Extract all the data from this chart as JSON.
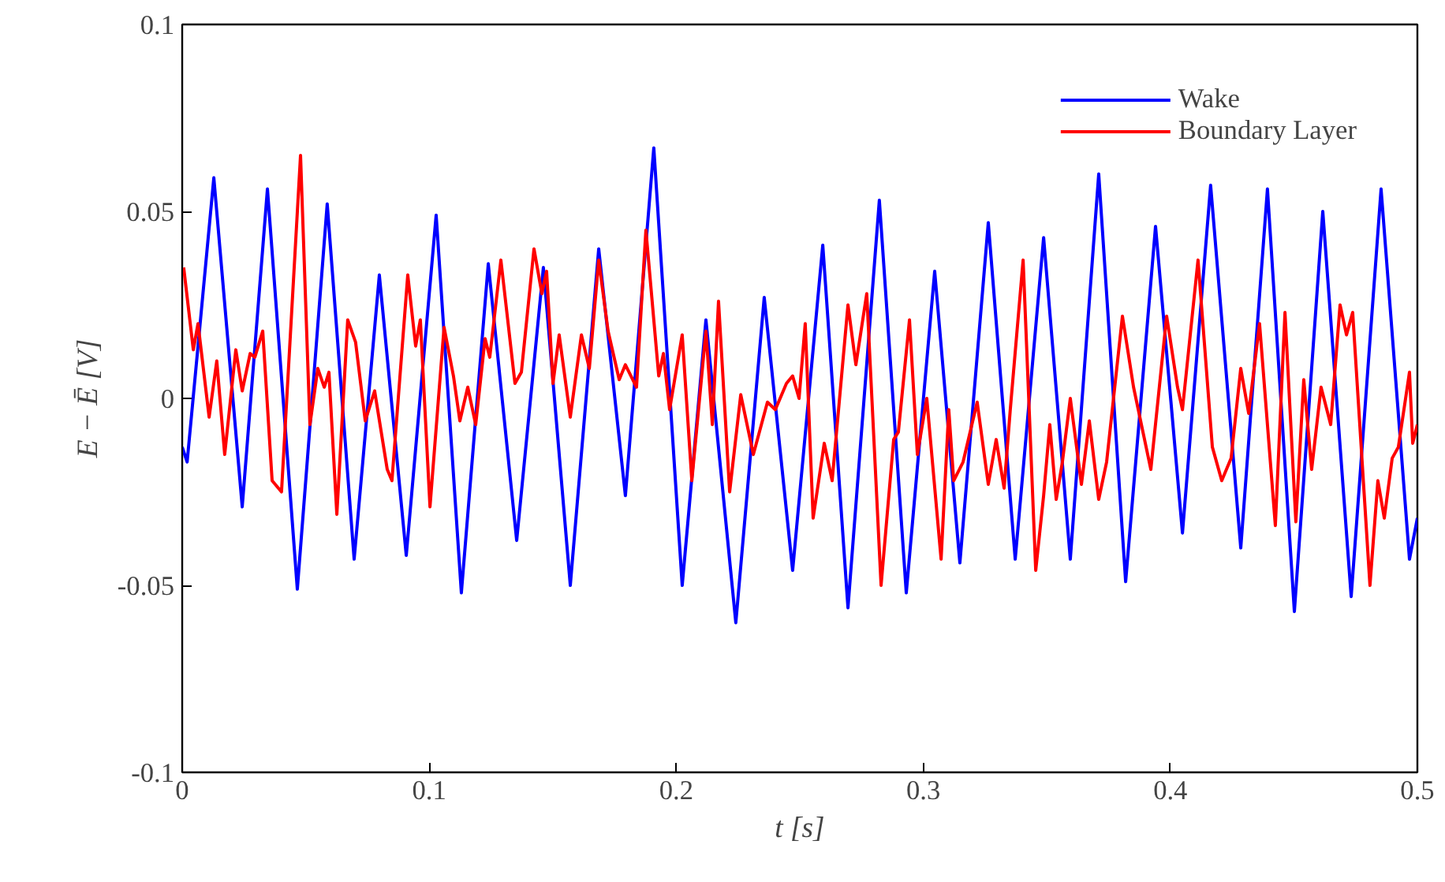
{
  "chart_data": {
    "type": "line",
    "xlabel": "t [s]",
    "ylabel": "E − Ē [V]",
    "xlim": [
      0,
      0.5
    ],
    "ylim": [
      -0.1,
      0.1
    ],
    "xticks": [
      0,
      0.1,
      0.2,
      0.3,
      0.4,
      0.5
    ],
    "yticks": [
      {
        "value": -0.1,
        "label": "-0.1"
      },
      {
        "value": -0.05,
        "label": "-0.05"
      },
      {
        "value": 0,
        "label": "0"
      },
      {
        "value": 0.05,
        "label": "0.05"
      },
      {
        "value": 0.1,
        "label": "0.1"
      }
    ],
    "grid": false,
    "legend": "top right",
    "line_style": "solid",
    "marker": "none",
    "series": [
      {
        "name": "Wake",
        "color": "#0000ff",
        "x": [
          0.0,
          0.002,
          0.0128,
          0.0243,
          0.0345,
          0.0466,
          0.0587,
          0.0696,
          0.0798,
          0.0907,
          0.1028,
          0.113,
          0.1239,
          0.1354,
          0.1462,
          0.1571,
          0.1686,
          0.1794,
          0.1909,
          0.2024,
          0.212,
          0.2241,
          0.2356,
          0.2471,
          0.2593,
          0.2695,
          0.2822,
          0.2931,
          0.3046,
          0.3148,
          0.3263,
          0.3372,
          0.3487,
          0.3595,
          0.371,
          0.3819,
          0.394,
          0.4049,
          0.4163,
          0.4285,
          0.4393,
          0.4502,
          0.4617,
          0.4732,
          0.4853,
          0.4968,
          0.5
        ],
        "values": [
          -0.013,
          -0.017,
          0.059,
          -0.029,
          0.056,
          -0.051,
          0.052,
          -0.043,
          0.033,
          -0.042,
          0.049,
          -0.052,
          0.036,
          -0.038,
          0.035,
          -0.05,
          0.04,
          -0.026,
          0.067,
          -0.05,
          0.021,
          -0.06,
          0.027,
          -0.046,
          0.041,
          -0.056,
          0.053,
          -0.052,
          0.034,
          -0.044,
          0.047,
          -0.043,
          0.043,
          -0.043,
          0.06,
          -0.049,
          0.046,
          -0.036,
          0.057,
          -0.04,
          0.056,
          -0.057,
          0.05,
          -0.053,
          0.056,
          -0.043,
          -0.032
        ]
      },
      {
        "name": "Boundary Layer",
        "color": "#ff0000",
        "x": [
          0.0006,
          0.0045,
          0.0064,
          0.0109,
          0.014,
          0.0172,
          0.0217,
          0.0243,
          0.0275,
          0.0294,
          0.0326,
          0.0364,
          0.0402,
          0.0479,
          0.0517,
          0.0549,
          0.0575,
          0.0594,
          0.0626,
          0.067,
          0.0702,
          0.0741,
          0.0779,
          0.083,
          0.0849,
          0.0913,
          0.0945,
          0.0964,
          0.1003,
          0.106,
          0.1098,
          0.1124,
          0.1156,
          0.1188,
          0.1226,
          0.1245,
          0.129,
          0.1347,
          0.1373,
          0.1424,
          0.1456,
          0.1475,
          0.1501,
          0.1526,
          0.1571,
          0.1616,
          0.1648,
          0.1686,
          0.1724,
          0.1769,
          0.1794,
          0.1839,
          0.1877,
          0.1929,
          0.1948,
          0.1973,
          0.2024,
          0.2063,
          0.212,
          0.2146,
          0.2171,
          0.2216,
          0.2261,
          0.2312,
          0.2369,
          0.2401,
          0.2446,
          0.2471,
          0.2497,
          0.2522,
          0.2554,
          0.2599,
          0.2631,
          0.2695,
          0.2727,
          0.2771,
          0.2829,
          0.288,
          0.2899,
          0.2944,
          0.2976,
          0.3014,
          0.3072,
          0.3103,
          0.3123,
          0.3161,
          0.3218,
          0.3263,
          0.3295,
          0.3327,
          0.3352,
          0.3404,
          0.3455,
          0.3487,
          0.3512,
          0.3538,
          0.3563,
          0.3595,
          0.364,
          0.3672,
          0.371,
          0.3742,
          0.3806,
          0.3851,
          0.3921,
          0.3985,
          0.4029,
          0.4049,
          0.4112,
          0.417,
          0.4208,
          0.4246,
          0.4285,
          0.4317,
          0.4361,
          0.4425,
          0.4464,
          0.4508,
          0.454,
          0.4572,
          0.461,
          0.4649,
          0.4687,
          0.4713,
          0.4738,
          0.4808,
          0.484,
          0.4866,
          0.4898,
          0.4923,
          0.4968,
          0.4981,
          0.5
        ],
        "values": [
          0.035,
          0.013,
          0.02,
          -0.005,
          0.01,
          -0.015,
          0.013,
          0.002,
          0.012,
          0.011,
          0.018,
          -0.022,
          -0.025,
          0.065,
          -0.007,
          0.008,
          0.003,
          0.007,
          -0.031,
          0.021,
          0.015,
          -0.006,
          0.002,
          -0.019,
          -0.022,
          0.033,
          0.014,
          0.021,
          -0.029,
          0.019,
          0.006,
          -0.006,
          0.003,
          -0.007,
          0.016,
          0.011,
          0.037,
          0.004,
          0.007,
          0.04,
          0.028,
          0.034,
          0.004,
          0.017,
          -0.005,
          0.017,
          0.008,
          0.037,
          0.018,
          0.005,
          0.009,
          0.003,
          0.045,
          0.006,
          0.012,
          -0.003,
          0.017,
          -0.022,
          0.018,
          -0.007,
          0.026,
          -0.025,
          0.001,
          -0.015,
          -0.001,
          -0.003,
          0.004,
          0.006,
          0.0,
          0.02,
          -0.032,
          -0.012,
          -0.022,
          0.025,
          0.009,
          0.028,
          -0.05,
          -0.011,
          -0.009,
          0.021,
          -0.015,
          0.0,
          -0.043,
          -0.003,
          -0.022,
          -0.017,
          -0.001,
          -0.023,
          -0.011,
          -0.024,
          -0.003,
          0.037,
          -0.046,
          -0.026,
          -0.007,
          -0.027,
          -0.017,
          0.0,
          -0.023,
          -0.006,
          -0.027,
          -0.017,
          0.022,
          0.003,
          -0.019,
          0.022,
          0.003,
          -0.003,
          0.037,
          -0.013,
          -0.022,
          -0.016,
          0.008,
          -0.004,
          0.02,
          -0.034,
          0.023,
          -0.033,
          0.005,
          -0.019,
          0.003,
          -0.007,
          0.025,
          0.017,
          0.023,
          -0.05,
          -0.022,
          -0.032,
          -0.016,
          -0.013,
          0.007,
          -0.012,
          -0.007
        ]
      }
    ]
  }
}
